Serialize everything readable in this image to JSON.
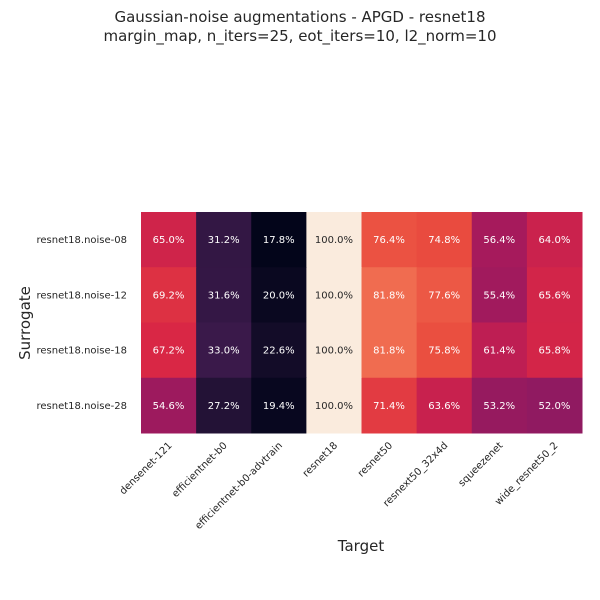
{
  "chart_data": {
    "type": "heatmap",
    "title_lines": [
      "Gaussian-noise augmentations - APGD - resnet18",
      "margin_map, n_iters=25, eot_iters=10, l2_norm=10"
    ],
    "xlabel": "Target",
    "ylabel": "Surrogate",
    "x_categories": [
      "densenet-121",
      "efficientnet-b0",
      "efficientnet-b0-advtrain",
      "resnet18",
      "resnet50",
      "resnext50_32x4d",
      "squeezenet",
      "wide_resnet50_2"
    ],
    "y_categories": [
      "resnet18.noise-08",
      "resnet18.noise-12",
      "resnet18.noise-18",
      "resnet18.noise-28"
    ],
    "values": [
      [
        65.0,
        31.2,
        17.8,
        100.0,
        76.4,
        74.8,
        56.4,
        64.0
      ],
      [
        69.2,
        31.6,
        20.0,
        100.0,
        81.8,
        77.6,
        55.4,
        65.6
      ],
      [
        67.2,
        33.0,
        22.6,
        100.0,
        81.8,
        75.8,
        61.4,
        65.8
      ],
      [
        54.6,
        27.2,
        19.4,
        100.0,
        71.4,
        63.6,
        53.2,
        52.0
      ]
    ],
    "labels": [
      [
        "65.0%",
        "31.2%",
        "17.8%",
        "100.0%",
        "76.4%",
        "74.8%",
        "56.4%",
        "64.0%"
      ],
      [
        "69.2%",
        "31.6%",
        "20.0%",
        "100.0%",
        "81.8%",
        "77.6%",
        "55.4%",
        "65.6%"
      ],
      [
        "67.2%",
        "33.0%",
        "22.6%",
        "100.0%",
        "81.8%",
        "75.8%",
        "61.4%",
        "65.8%"
      ],
      [
        "54.6%",
        "27.2%",
        "19.4%",
        "100.0%",
        "71.4%",
        "63.6%",
        "53.2%",
        "52.0%"
      ]
    ],
    "colormap": "rocket",
    "value_range": [
      17.8,
      100.0
    ],
    "colorbar": false,
    "grid": false
  }
}
